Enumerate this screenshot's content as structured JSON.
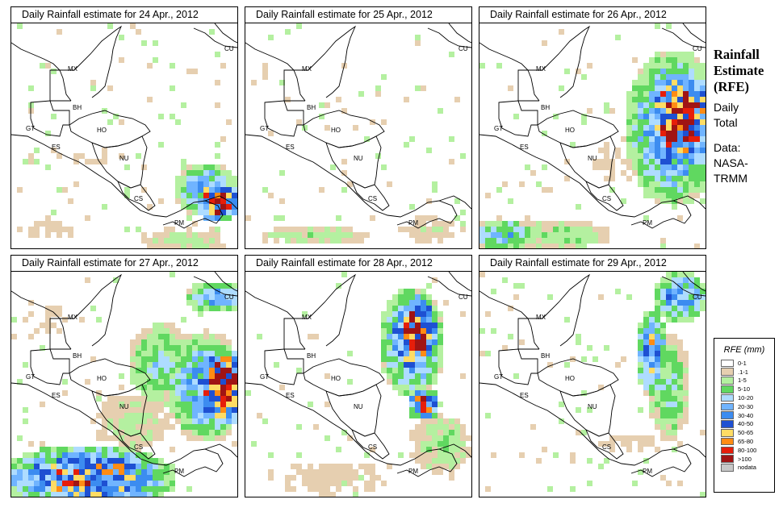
{
  "side": {
    "title_line1": "Rainfall",
    "title_line2": "Estimate",
    "title_line3": "(RFE)",
    "sub_line1": "Daily",
    "sub_line2": "Total",
    "data_line1": "Data:",
    "data_line2": "NASA-",
    "data_line3": "TRMM"
  },
  "panels": [
    {
      "title": "Daily Rainfall estimate for  24 Apr., 2012"
    },
    {
      "title": "Daily Rainfall estimate for  25 Apr., 2012"
    },
    {
      "title": "Daily Rainfall estimate for  26 Apr., 2012"
    },
    {
      "title": "Daily Rainfall estimate for  27 Apr., 2012"
    },
    {
      "title": "Daily Rainfall estimate for  28 Apr., 2012"
    },
    {
      "title": "Daily Rainfall estimate for  29 Apr., 2012"
    }
  ],
  "map_labels": {
    "mx": "MX",
    "bh": "BH",
    "gt": "GT",
    "ho": "HO",
    "es": "ES",
    "nu": "NU",
    "cs": "CS",
    "pm": "PM",
    "cu": "CU"
  },
  "legend": {
    "title": "RFE (mm)",
    "items": [
      {
        "label": "0-1",
        "color": "#ffffff"
      },
      {
        "label": ".1-1",
        "color": "#e6cfb0"
      },
      {
        "label": "1-5",
        "color": "#b4f0a0"
      },
      {
        "label": "5-10",
        "color": "#60d860"
      },
      {
        "label": "10-20",
        "color": "#aedcff"
      },
      {
        "label": "20-30",
        "color": "#70b4ff"
      },
      {
        "label": "30-40",
        "color": "#3c8cf0"
      },
      {
        "label": "40-50",
        "color": "#1e50d2"
      },
      {
        "label": "50-65",
        "color": "#ffdc64"
      },
      {
        "label": "65-80",
        "color": "#ff8c14"
      },
      {
        "label": "80-100",
        "color": "#e61e0a"
      },
      {
        "label": ">100",
        "color": "#a01414"
      },
      {
        "label": "nodata",
        "color": "#c8c8c8"
      }
    ]
  }
}
